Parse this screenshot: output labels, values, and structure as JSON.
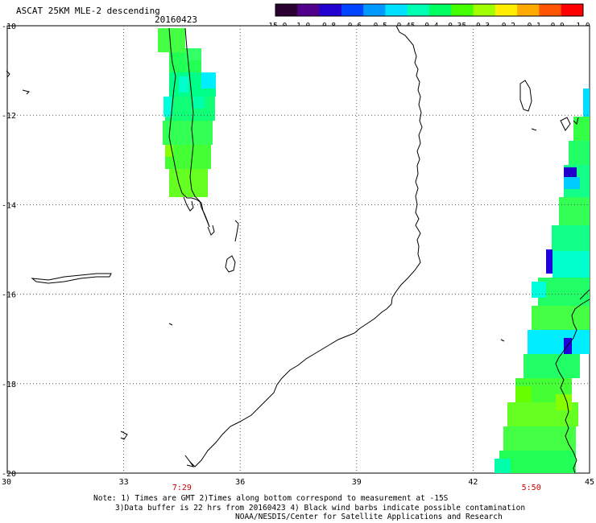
{
  "header": {
    "title": "ASCAT 25KM MLE-2 descending",
    "date": "20160423"
  },
  "colorbar": {
    "labels": [
      "-15.0",
      "-1.0",
      "-0.8",
      "-0.6",
      "-0.5",
      "-0.45",
      "-0.4",
      "-0.35",
      "-0.3",
      "-0.2",
      "-0.1",
      "0.0",
      "1.0"
    ],
    "colors": [
      "#2a0030",
      "#50008a",
      "#2200d0",
      "#0044ff",
      "#0099ff",
      "#00e0ff",
      "#00ffb0",
      "#00ff60",
      "#44ff00",
      "#a0ff00",
      "#ffee00",
      "#ffaa00",
      "#ff5500",
      "#ff0000"
    ]
  },
  "map": {
    "lon_labels": [
      "30",
      "33",
      "36",
      "39",
      "42",
      "45"
    ],
    "lat_labels": [
      "-10",
      "-12",
      "-14",
      "-16",
      "-18",
      "-20"
    ],
    "lon_range": [
      30,
      45
    ],
    "lat_range": [
      -10,
      -20
    ],
    "pass_times": [
      {
        "label": "7:29",
        "lon": 34.5
      },
      {
        "label": "5:50",
        "lon": 43.5
      }
    ]
  },
  "notes": {
    "line1": "Note: 1) Times are GMT 2)Times along bottom correspond to measurement at -15S",
    "line2": "3)Data buffer is 22 hrs from 20160423 4) Black wind barbs indicate possible contamination",
    "line3": "NOAA/NESDIS/Center for Satellite Applications and Research"
  }
}
